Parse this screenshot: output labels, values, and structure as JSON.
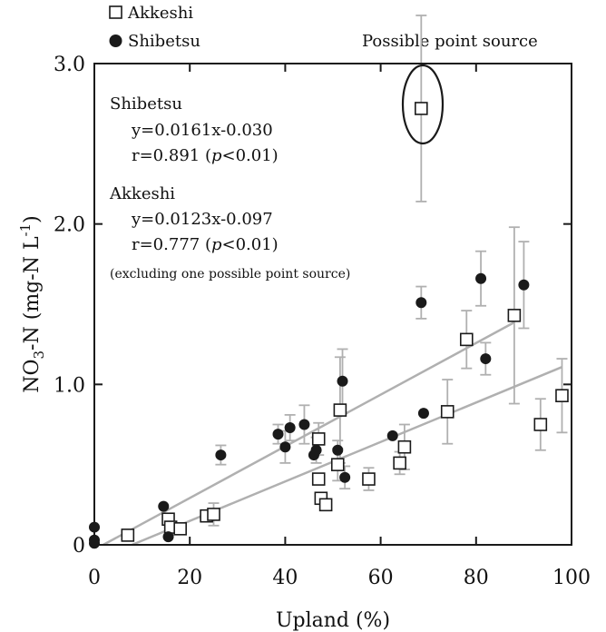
{
  "chart_data": {
    "type": "scatter",
    "xlabel": "Upland (%)",
    "ylabel_main": "NO",
    "ylabel_sub": "3",
    "ylabel_rest": "-N (mg-N L",
    "ylabel_sup": "-1",
    "ylabel_end": ")",
    "xlim": [
      0,
      100
    ],
    "ylim": [
      0,
      3.0
    ],
    "x_ticks": [
      0,
      20,
      40,
      60,
      80,
      100
    ],
    "x_tick_labels": [
      "0",
      "20",
      "40",
      "60",
      "80",
      "100"
    ],
    "y_ticks": [
      0,
      1.0,
      2.0,
      3.0
    ],
    "y_tick_labels": [
      "0",
      "1.0",
      "2.0",
      "3.0"
    ],
    "grid": false,
    "legend": {
      "placement": "top-left",
      "entries": [
        "Akkeshi",
        "Shibetsu"
      ]
    },
    "series": [
      {
        "name": "Akkeshi",
        "marker": "open-square",
        "points": [
          {
            "x": 7,
            "y": 0.06
          },
          {
            "x": 15.5,
            "y": 0.16
          },
          {
            "x": 16,
            "y": 0.11
          },
          {
            "x": 18,
            "y": 0.1
          },
          {
            "x": 23.5,
            "y": 0.18
          },
          {
            "x": 25,
            "y": 0.19,
            "err": 0.07
          },
          {
            "x": 47,
            "y": 0.66,
            "err": 0.1
          },
          {
            "x": 47,
            "y": 0.41
          },
          {
            "x": 47.5,
            "y": 0.29
          },
          {
            "x": 48.5,
            "y": 0.25
          },
          {
            "x": 51,
            "y": 0.5,
            "err": 0.1
          },
          {
            "x": 51.5,
            "y": 0.84,
            "err": 0.33
          },
          {
            "x": 57.5,
            "y": 0.41,
            "err": 0.07
          },
          {
            "x": 64,
            "y": 0.51,
            "err": 0.07
          },
          {
            "x": 65,
            "y": 0.61,
            "err": 0.14
          },
          {
            "x": 68.5,
            "y": 2.72,
            "err": 0.58
          },
          {
            "x": 74,
            "y": 0.83,
            "err": 0.2
          },
          {
            "x": 78,
            "y": 1.28,
            "err": 0.18
          },
          {
            "x": 88,
            "y": 1.43,
            "err": 0.55
          },
          {
            "x": 93.5,
            "y": 0.75,
            "err": 0.16
          },
          {
            "x": 98,
            "y": 0.93,
            "err": 0.23
          }
        ]
      },
      {
        "name": "Shibetsu",
        "marker": "filled-circle",
        "points": [
          {
            "x": 0,
            "y": 0.11
          },
          {
            "x": 0,
            "y": 0.03
          },
          {
            "x": 0,
            "y": 0.01
          },
          {
            "x": 14.5,
            "y": 0.24
          },
          {
            "x": 15.5,
            "y": 0.05
          },
          {
            "x": 26.5,
            "y": 0.56,
            "err": 0.06
          },
          {
            "x": 38.5,
            "y": 0.69,
            "err": 0.06
          },
          {
            "x": 40,
            "y": 0.61,
            "err": 0.1
          },
          {
            "x": 41,
            "y": 0.73,
            "err": 0.08
          },
          {
            "x": 44,
            "y": 0.75,
            "err": 0.12
          },
          {
            "x": 46,
            "y": 0.56
          },
          {
            "x": 46.5,
            "y": 0.59,
            "err": 0.08
          },
          {
            "x": 51,
            "y": 0.59,
            "err": 0.06
          },
          {
            "x": 52,
            "y": 1.02,
            "err": 0.2
          },
          {
            "x": 52.5,
            "y": 0.42,
            "err": 0.07
          },
          {
            "x": 62.5,
            "y": 0.68
          },
          {
            "x": 68.5,
            "y": 1.51,
            "err": 0.1
          },
          {
            "x": 69,
            "y": 0.82
          },
          {
            "x": 81,
            "y": 1.66,
            "err": 0.17
          },
          {
            "x": 82,
            "y": 1.16,
            "err": 0.1
          },
          {
            "x": 90,
            "y": 1.62,
            "err": 0.27
          }
        ]
      }
    ],
    "regression_lines": [
      {
        "name": "Shibetsu",
        "slope": 0.0161,
        "intercept": -0.03,
        "x_range": [
          1.9,
          88
        ]
      },
      {
        "name": "Akkeshi",
        "slope": 0.0123,
        "intercept": -0.097,
        "x_range": [
          7.9,
          98
        ]
      }
    ],
    "annotations": {
      "point_source_label": "Possible point source",
      "shibetsu_title": "Shibetsu",
      "shibetsu_eq": "y=0.0161x-0.030",
      "shibetsu_r_pre": "r=0.891 (",
      "shibetsu_r_p": "p",
      "shibetsu_r_post": "<0.01)",
      "akkeshi_title": "Akkeshi",
      "akkeshi_eq": "y=0.0123x-0.097",
      "akkeshi_r_pre": "r=0.777 (",
      "akkeshi_r_p": "p",
      "akkeshi_r_post": "<0.01)",
      "excluding_note": "(excluding one possible point source)"
    },
    "colors": {
      "marker": "#1a1a1a",
      "regression": "#b0b0b0",
      "error_bar": "#b0b0b0",
      "axis": "#1a1a1a"
    }
  }
}
